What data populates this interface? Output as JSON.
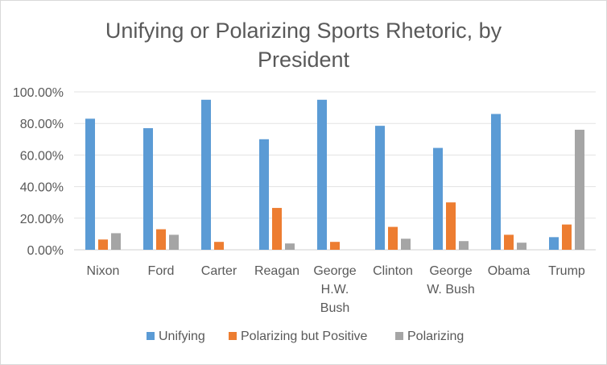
{
  "chart_data": {
    "type": "bar",
    "title_lines": [
      "Unifying or Polarizing Sports Rhetoric, by",
      "President"
    ],
    "xlabel": "",
    "ylabel": "",
    "categories": [
      [
        "Nixon"
      ],
      [
        "Ford"
      ],
      [
        "Carter"
      ],
      [
        "Reagan"
      ],
      [
        "George",
        "H.W.",
        "Bush"
      ],
      [
        "Clinton"
      ],
      [
        "George",
        "W. Bush"
      ],
      [
        "Obama"
      ],
      [
        "Trump"
      ]
    ],
    "series": [
      {
        "name": "Unifying",
        "color": "#5b9bd5",
        "values": [
          83.0,
          77.0,
          95.0,
          70.0,
          95.0,
          78.5,
          64.5,
          86.0,
          8.0
        ]
      },
      {
        "name": "Polarizing but Positive",
        "color": "#ed7d31",
        "values": [
          6.5,
          13.0,
          5.0,
          26.5,
          5.0,
          14.5,
          30.0,
          9.5,
          16.0
        ]
      },
      {
        "name": "Polarizing",
        "color": "#a5a5a5",
        "values": [
          10.5,
          9.5,
          0,
          4.0,
          0,
          7.0,
          5.5,
          4.5,
          76.0
        ]
      }
    ],
    "ylim": [
      0,
      100
    ],
    "yticks": [
      "0.00%",
      "20.00%",
      "40.00%",
      "60.00%",
      "80.00%",
      "100.00%"
    ],
    "grid": true,
    "legend_position": "bottom"
  }
}
